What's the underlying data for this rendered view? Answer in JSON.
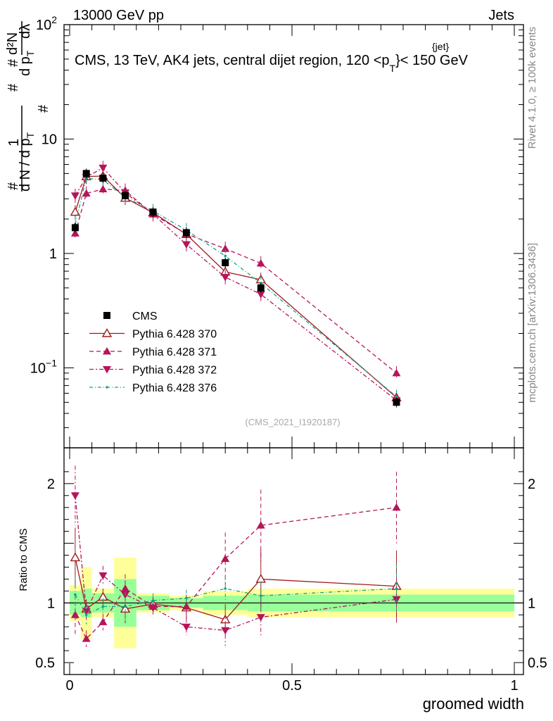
{
  "header": {
    "left": "13000 GeV pp",
    "right": "Jets",
    "title_prefix": "CMS, 13 TeV, AK4 jets, central dijet region, 120 <p",
    "title_sup": "{jet}",
    "title_sub": "T",
    "title_suffix": "}< 150 GeV"
  },
  "side_labels": {
    "rivet": "Rivet 4.1.0, ≥ 100k events",
    "mcplots": "mcplots.cern.ch [arXiv:1306.3436]"
  },
  "watermark": "(CMS_2021_I1920187)",
  "chart_data": {
    "type": "scatter",
    "xlabel": "groomed width",
    "ylabel": "1/N dN/dp_T · d²N/(dp_T dλ)",
    "ylabel_parts": {
      "hash": "#",
      "one": "1",
      "dN": "d N / d p",
      "T": "T",
      "d2N": "d²N",
      "dp": "d p",
      "dl": "dλ"
    },
    "ratio_ylabel": "Ratio to CMS",
    "xlim": [
      0,
      1
    ],
    "ylim": [
      0.02,
      100
    ],
    "ratio_ylim": [
      0.4,
      2.3
    ],
    "yscale": "log",
    "main_y_ticks": [
      {
        "v": 0.1,
        "base": "10",
        "exp": "−1"
      },
      {
        "v": 1,
        "base": "1",
        "exp": ""
      },
      {
        "v": 10,
        "base": "10",
        "exp": ""
      },
      {
        "v": 100,
        "base": "10",
        "exp": "2"
      }
    ],
    "ratio_y_ticks": [
      {
        "v": 0.5,
        "label": "0.5"
      },
      {
        "v": 1,
        "label": "1"
      },
      {
        "v": 2,
        "label": "2"
      }
    ],
    "x_ticks": [
      {
        "v": 0,
        "label": "0"
      },
      {
        "v": 0.5,
        "label": "0.5"
      },
      {
        "v": 1,
        "label": "1"
      }
    ],
    "bins": [
      {
        "lo": 0,
        "hi": 0.025
      },
      {
        "lo": 0.025,
        "hi": 0.05
      },
      {
        "lo": 0.05,
        "hi": 0.1
      },
      {
        "lo": 0.1,
        "hi": 0.15
      },
      {
        "lo": 0.15,
        "hi": 0.225
      },
      {
        "lo": 0.225,
        "hi": 0.3
      },
      {
        "lo": 0.3,
        "hi": 0.4
      },
      {
        "lo": 0.4,
        "hi": 0.47
      },
      {
        "lo": 0.47,
        "hi": 1.0
      }
    ],
    "data": {
      "name": "CMS",
      "x": [
        0.0125,
        0.0375,
        0.075,
        0.125,
        0.1875,
        0.2625,
        0.35,
        0.43,
        0.735
      ],
      "y": [
        1.68,
        5.0,
        4.55,
        3.2,
        2.3,
        1.52,
        0.83,
        0.5,
        0.05
      ],
      "band_yellow": [
        0.15,
        0.3,
        0.12,
        0.38,
        0.08,
        0.06,
        0.1,
        0.12,
        0.12
      ],
      "band_green": [
        0.1,
        0.12,
        0.08,
        0.2,
        0.06,
        0.04,
        0.06,
        0.07,
        0.07
      ]
    },
    "series": [
      {
        "name": "Pythia 6.428 370",
        "color": "#a01b1b",
        "marker": "open-triangle-up",
        "dash": "",
        "x": [
          0.0125,
          0.0375,
          0.075,
          0.125,
          0.1875,
          0.2625,
          0.35,
          0.43,
          0.735
        ],
        "y": [
          2.3,
          4.7,
          4.75,
          3.05,
          2.27,
          1.47,
          0.69,
          0.59,
          0.055
        ],
        "ratio": [
          1.38,
          0.95,
          1.05,
          0.95,
          0.99,
          0.96,
          0.86,
          1.2,
          1.14
        ],
        "ratio_err": [
          0.25,
          0.08,
          0.07,
          0.12,
          0.06,
          0.1,
          0.13,
          0.25,
          0.3
        ]
      },
      {
        "name": "Pythia 6.428 371",
        "color": "#b5155a",
        "marker": "filled-triangle-up",
        "dash": "6,4",
        "x": [
          0.0125,
          0.0375,
          0.075,
          0.125,
          0.1875,
          0.2625,
          0.35,
          0.43,
          0.735
        ],
        "y": [
          1.5,
          3.35,
          3.65,
          3.55,
          2.2,
          1.48,
          1.1,
          0.82,
          0.09
        ],
        "ratio": [
          0.9,
          0.7,
          0.84,
          1.12,
          0.97,
          0.97,
          1.37,
          1.65,
          1.8
        ],
        "ratio_err": [
          0.17,
          0.07,
          0.07,
          0.12,
          0.06,
          0.1,
          0.22,
          0.3,
          0.3
        ]
      },
      {
        "name": "Pythia 6.428 372",
        "color": "#b5155a",
        "marker": "filled-triangle-down",
        "dash": "6,3,2,3",
        "x": [
          0.0125,
          0.0375,
          0.075,
          0.125,
          0.1875,
          0.2625,
          0.35,
          0.43,
          0.735
        ],
        "y": [
          3.2,
          4.65,
          5.6,
          3.4,
          2.2,
          1.2,
          0.62,
          0.44,
          0.052
        ],
        "ratio": [
          1.9,
          0.93,
          1.23,
          1.07,
          0.96,
          0.8,
          0.77,
          0.88,
          1.03
        ],
        "ratio_err": [
          0.25,
          0.08,
          0.08,
          0.12,
          0.06,
          0.07,
          0.13,
          0.16,
          0.2
        ]
      },
      {
        "name": "Pythia 6.428 376",
        "color": "#12a38a",
        "marker": "dot",
        "dash": "5,3,1,3",
        "x": [
          0.0125,
          0.0375,
          0.075,
          0.125,
          0.1875,
          0.2625,
          0.35,
          0.43,
          0.735
        ],
        "y": [
          1.8,
          4.55,
          4.4,
          3.1,
          2.35,
          1.6,
          0.95,
          0.55,
          0.056
        ],
        "ratio": [
          1.07,
          0.9,
          0.97,
          0.97,
          1.02,
          1.04,
          1.12,
          1.06,
          1.12
        ],
        "ratio_err": [
          0.15,
          0.08,
          0.07,
          0.12,
          0.06,
          0.07,
          0.1,
          0.12,
          0.2
        ]
      }
    ]
  }
}
